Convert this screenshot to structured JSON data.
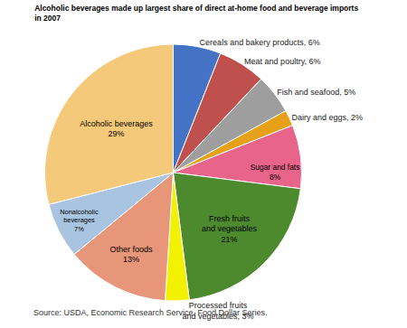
{
  "chart_data": {
    "type": "pie",
    "title": "Alcoholic beverages made up largest share of direct at-home food and beverage imports\nin 2007",
    "annotations": [
      "Source: USDA, Economic Research Service, Food Dollar Series."
    ],
    "categories": [
      "Cereals and bakery products, 6%",
      "Meat and poultry, 6%",
      "Fish and seafood, 5%",
      "Dairy and eggs, 2%",
      "Sugar and fats\n8%",
      "Fresh fruits\nand vegetables\n21%",
      "Processed fruits\nand vegetables, 3%",
      "Other foods\n13%",
      "Nonalcoholic\nbeverages\n7%",
      "Alcoholic beverages\n29%"
    ],
    "values": [
      6,
      6,
      5,
      2,
      8,
      21,
      3,
      13,
      7,
      29
    ],
    "colors": [
      "#4472C4",
      "#C0504D",
      "#9E9E9E",
      "#E6A118",
      "#E8648A",
      "#4D8A2E",
      "#F2F200",
      "#E8967A",
      "#A8C4E0",
      "#F5C97A"
    ]
  }
}
